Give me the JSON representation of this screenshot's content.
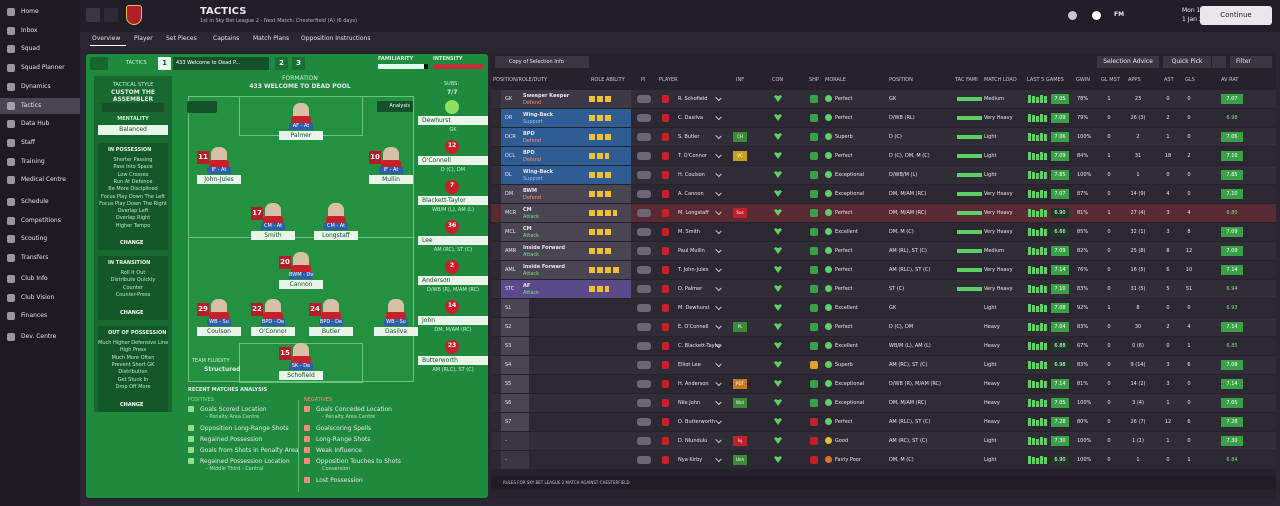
{
  "sidebar": {
    "items": [
      "Home",
      "Inbox",
      "Squad",
      "Squad Planner",
      "Dynamics",
      "Tactics",
      "Data Hub",
      "Staff",
      "Training",
      "Medical Centre",
      "Schedule",
      "Competitions",
      "Scouting",
      "Transfers",
      "Club Info",
      "Club Vision",
      "Finances",
      "Dev. Centre"
    ]
  },
  "topbar": {
    "title": "TACTICS",
    "subtitle": "1st in Sky Bet League 2 - Next Match: Chesterfield (A) (6 days)",
    "logo": "FM",
    "time": "Mon 17:15",
    "date": "1 Jan 2024",
    "continue": "Continue"
  },
  "tabs": [
    "Overview",
    "Player",
    "Set Pieces",
    "Captains",
    "Match Plans",
    "Opposition Instructions"
  ],
  "tactics_panel": {
    "label": "TACTICS",
    "slots": [
      "1",
      "2",
      "3"
    ],
    "slot_name": "433 Welcome to Dead P...",
    "familiarity": "FAMILIARITY",
    "intensity": "INTENSITY",
    "style_heading": "TACTICAL STYLE",
    "style": "CUSTOM THE ASSEMBLER",
    "mentality_heading": "MENTALITY",
    "mentality": "Balanced",
    "instructions": [
      {
        "heading": "IN POSSESSION",
        "items": [
          "Shorter Passing",
          "Pass Into Space",
          "Low Crosses",
          "Run At Defence",
          "Be More Disciplined",
          "Focus Play Down The Left",
          "Focus Play Down The Right",
          "Overlap Left",
          "Overlap Right",
          "Higher Tempo"
        ],
        "button": "CHANGE"
      },
      {
        "heading": "IN TRANSITION",
        "items": [
          "Roll It Out",
          "Distribute Quickly",
          "Counter",
          "Counter-Press"
        ],
        "button": "CHANGE"
      },
      {
        "heading": "OUT OF POSSESSION",
        "items": [
          "Much Higher Defensive Line",
          "High Press",
          "Much More Often",
          "Prevent Short GK",
          "Distribution",
          "Get Stuck In",
          "Drop Off More"
        ],
        "button": "CHANGE"
      }
    ]
  },
  "formation": {
    "heading": "FORMATION",
    "name": "433 WELCOME TO DEAD POOL",
    "analysis": "Analysis",
    "fluidity_heading": "TEAM FLUIDITY",
    "fluidity": "Structured",
    "players": [
      {
        "name": "Palmer",
        "role": "AF - At"
      },
      {
        "name": "John-Jules",
        "role": "IF - At",
        "number": "11"
      },
      {
        "name": "Mullin",
        "role": "IF - At",
        "number": "10"
      },
      {
        "name": "Smith",
        "role": "CM - At",
        "number": "17"
      },
      {
        "name": "Longstaff",
        "role": "CM - At"
      },
      {
        "name": "Cannon",
        "role": "BWM - De",
        "number": "20"
      },
      {
        "name": "Coulson",
        "role": "WB - Su",
        "number": "29"
      },
      {
        "name": "O'Connor",
        "role": "BPD - De",
        "number": "22"
      },
      {
        "name": "Butler",
        "role": "BPD - De",
        "number": "24"
      },
      {
        "name": "Dasilva",
        "role": "WB - Su"
      },
      {
        "name": "Schofield",
        "role": "SK - De",
        "number": "15"
      }
    ],
    "subs_heading": "SUBS:",
    "subs_count": "7/7",
    "subs": [
      {
        "name": "Dewhurst",
        "position": "GK"
      },
      {
        "name": "O'Connell",
        "position": "D (C), DM",
        "number": "12"
      },
      {
        "name": "Blackett-Taylor",
        "position": "WB/M (L), AM (L)",
        "number": "7"
      },
      {
        "name": "Lee",
        "position": "AM (RC), ST (C)",
        "number": "36"
      },
      {
        "name": "Anderson",
        "position": "D/WB (R), M/AM (RC)",
        "number": "2"
      },
      {
        "name": "John",
        "position": "DM, M/AM (RC)",
        "number": "14"
      },
      {
        "name": "Butterworth",
        "position": "AM (RLC), ST (C)",
        "number": "23"
      }
    ]
  },
  "analysis": {
    "heading": "RECENT MATCHES ANALYSIS",
    "positives_heading": "POSITIVES",
    "positives": [
      {
        "text": "Goals Scored Location",
        "detail": "- Penalty Area Centre"
      },
      {
        "text": "Opposition Long-Range Shots"
      },
      {
        "text": "Regained Possession"
      },
      {
        "text": "Goals from Shots in Penalty Area"
      },
      {
        "text": "Regained Possession Location",
        "detail": "- Middle Third - Central"
      }
    ],
    "negatives_heading": "NEGATIVES",
    "negatives": [
      {
        "text": "Goals Conceded Location",
        "detail": "- Penalty Area Centre"
      },
      {
        "text": "Goalscoring Spells"
      },
      {
        "text": "Long-Range Shots"
      },
      {
        "text": "Weak Influence"
      },
      {
        "text": "Opposition Touches to Shots",
        "detail": "Conversion"
      },
      {
        "text": "Lost Possession"
      }
    ]
  },
  "selection": {
    "copy_button": "Copy of Selection Info",
    "advice_button": "Selection Advice",
    "quick_pick": "Quick Pick",
    "filter": "Filter",
    "columns": [
      "POSITION/ROLE/DUTY",
      "ROLE ABILITY",
      "PI",
      "PLAYER",
      "INF",
      "CON",
      "SHP",
      "MORALE",
      "POSITION",
      "TAC FAMI",
      "MATCH LOAD",
      "LAST 5 GAMES",
      "GWIN",
      "GL MST",
      "APPS",
      "AST",
      "GLS",
      "AV RAT"
    ],
    "rows": [
      {
        "slot": "GK",
        "role": "Sweeper Keeper",
        "duty": "Defend",
        "player": "R. Schofield",
        "morale": "Perfect",
        "position": "GK",
        "load": "Medium",
        "rating": "7.05",
        "gwin": "78%",
        "glmst": "1",
        "apps": "23",
        "ast": "0",
        "gls": "0",
        "avrat": "7.07"
      },
      {
        "slot": "DR",
        "role": "Wing-Back",
        "duty": "Support",
        "player": "C. Dasilva",
        "morale": "Perfect",
        "position": "D/WB (RL)",
        "load": "Very Heavy",
        "rating": "7.09",
        "gwin": "79%",
        "glmst": "0",
        "apps": "26 (3)",
        "ast": "2",
        "gls": "0",
        "avrat": "6.98"
      },
      {
        "slot": "DCR",
        "role": "BPD",
        "duty": "Defend",
        "player": "S. Butler",
        "inf": "CH",
        "morale": "Superb",
        "position": "D (C)",
        "load": "Light",
        "rating": "7.06",
        "gwin": "100%",
        "glmst": "0",
        "apps": "2",
        "ast": "1",
        "gls": "0",
        "avrat": "7.06"
      },
      {
        "slot": "DCL",
        "role": "BPD",
        "duty": "Defend",
        "player": "T. O'Connor",
        "inf": "VC",
        "morale": "Perfect",
        "position": "D (C), DM, M (C)",
        "load": "Light",
        "rating": "7.09",
        "gwin": "84%",
        "glmst": "1",
        "apps": "31",
        "ast": "18",
        "gls": "2",
        "avrat": "7.10"
      },
      {
        "slot": "DL",
        "role": "Wing-Back",
        "duty": "Support",
        "player": "H. Coulson",
        "morale": "Exceptional",
        "position": "D/WB/M (L)",
        "load": "Light",
        "rating": "7.85",
        "gwin": "100%",
        "glmst": "0",
        "apps": "1",
        "ast": "0",
        "gls": "0",
        "avrat": "7.85"
      },
      {
        "slot": "DM",
        "role": "BWM",
        "duty": "Defend",
        "player": "A. Cannon",
        "morale": "Exceptional",
        "position": "DM, M/AM (RC)",
        "load": "Very Heavy",
        "rating": "7.07",
        "gwin": "87%",
        "glmst": "0",
        "apps": "14 (9)",
        "ast": "4",
        "gls": "0",
        "avrat": "7.10"
      },
      {
        "slot": "MCR",
        "role": "CM",
        "duty": "Attack",
        "player": "M. Longstaff",
        "inf": "Sus",
        "morale": "Perfect",
        "position": "DM, M/AM (RC)",
        "load": "Very Heavy",
        "rating": "6.90",
        "gwin": "81%",
        "glmst": "1",
        "apps": "27 (4)",
        "ast": "3",
        "gls": "4",
        "avrat": "6.80"
      },
      {
        "slot": "MCL",
        "role": "CM",
        "duty": "Attack",
        "player": "M. Smith",
        "morale": "Excellent",
        "position": "DM, M (C)",
        "load": "Very Heavy",
        "rating": "6.66",
        "gwin": "85%",
        "glmst": "0",
        "apps": "32 (1)",
        "ast": "3",
        "gls": "8",
        "avrat": "7.09"
      },
      {
        "slot": "AMR",
        "role": "Inside Forward",
        "duty": "Attack",
        "player": "Paul Mullin",
        "morale": "Perfect",
        "position": "AM (RL), ST (C)",
        "load": "Medium",
        "rating": "7.09",
        "gwin": "82%",
        "glmst": "0",
        "apps": "25 (8)",
        "ast": "8",
        "gls": "12",
        "avrat": "7.09"
      },
      {
        "slot": "AML",
        "role": "Inside Forward",
        "duty": "Attack",
        "player": "T. John-Jules",
        "morale": "Perfect",
        "position": "AM (RLC), ST (C)",
        "load": "Very Heavy",
        "rating": "7.14",
        "gwin": "76%",
        "glmst": "0",
        "apps": "16 (5)",
        "ast": "6",
        "gls": "10",
        "avrat": "7.14"
      },
      {
        "slot": "STC",
        "role": "AF",
        "duty": "Attack",
        "player": "O. Palmer",
        "morale": "Perfect",
        "position": "ST (C)",
        "load": "Very Heavy",
        "rating": "7.10",
        "gwin": "83%",
        "glmst": "0",
        "apps": "31 (5)",
        "ast": "5",
        "gls": "51",
        "avrat": "6.94"
      },
      {
        "slot": "S1",
        "player": "M. Dewhurst",
        "morale": "Excellent",
        "position": "GK",
        "load": "Light",
        "rating": "7.08",
        "gwin": "92%",
        "glmst": "1",
        "apps": "8",
        "ast": "0",
        "gls": "0",
        "avrat": "6.93"
      },
      {
        "slot": "S2",
        "player": "E. O'Connell",
        "inf": "PL",
        "morale": "Perfect",
        "position": "D (C), DM",
        "load": "Heavy",
        "rating": "7.04",
        "gwin": "83%",
        "glmst": "0",
        "apps": "30",
        "ast": "2",
        "gls": "4",
        "avrat": "7.14"
      },
      {
        "slot": "S3",
        "player": "C. Blackett-Taylor",
        "morale": "Excellent",
        "position": "WB/M (L), AM (L)",
        "load": "Heavy",
        "rating": "6.88",
        "gwin": "67%",
        "glmst": "0",
        "apps": "0 (6)",
        "ast": "0",
        "gls": "1",
        "avrat": "6.85"
      },
      {
        "slot": "S4",
        "player": "Elliot Lee",
        "morale": "Superb",
        "position": "AM (RC), ST (C)",
        "load": "Light",
        "rating": "6.98",
        "gwin": "83%",
        "glmst": "0",
        "apps": "9 (14)",
        "ast": "3",
        "gls": "6",
        "avrat": "7.08"
      },
      {
        "slot": "S5",
        "player": "H. Anderson",
        "inf": "PDT",
        "morale": "Exceptional",
        "position": "D/WB (R), M/AM (RC)",
        "load": "Heavy",
        "rating": "7.14",
        "gwin": "81%",
        "glmst": "0",
        "apps": "14 (2)",
        "ast": "3",
        "gls": "0",
        "avrat": "7.14"
      },
      {
        "slot": "S6",
        "player": "Nile John",
        "inf": "Wnt",
        "morale": "Exceptional",
        "position": "DM, M/AM (RC)",
        "load": "Heavy",
        "rating": "7.05",
        "gwin": "100%",
        "glmst": "0",
        "apps": "3 (4)",
        "ast": "1",
        "gls": "0",
        "avrat": "7.05"
      },
      {
        "slot": "S7",
        "player": "D. Butterworth",
        "morale": "Perfect",
        "position": "AM (RLC), ST (C)",
        "load": "Heavy",
        "rating": "7.28",
        "gwin": "80%",
        "glmst": "0",
        "apps": "26 (7)",
        "ast": "12",
        "gls": "6",
        "avrat": "7.28"
      },
      {
        "slot": "-",
        "player": "D. Nlundulu",
        "inf": "Inj",
        "morale": "Good",
        "position": "AM (RC), ST (C)",
        "load": "Light",
        "rating": "7.30",
        "gwin": "100%",
        "glmst": "0",
        "apps": "1 (1)",
        "ast": "1",
        "gls": "0",
        "avrat": "7.30"
      },
      {
        "slot": "-",
        "player": "Nya Kirby",
        "inf": "Unh",
        "morale": "Fairly Poor",
        "position": "DM, M (C)",
        "load": "Light",
        "rating": "6.90",
        "gwin": "100%",
        "glmst": "0",
        "apps": "1",
        "ast": "0",
        "gls": "1",
        "avrat": "6.84"
      }
    ],
    "footer": "RULES FOR SKY BET LEAGUE 2 MATCH AGAINST CHESTERFIELD"
  }
}
